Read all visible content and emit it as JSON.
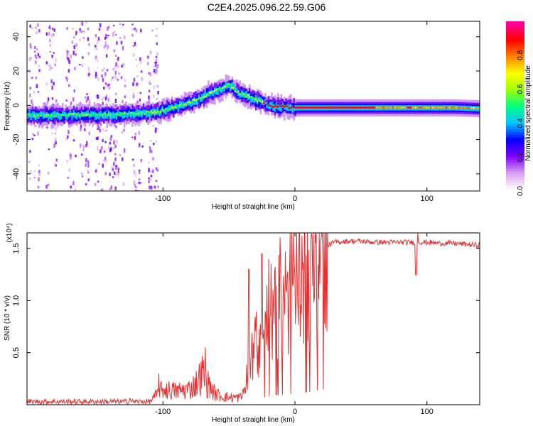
{
  "title": "C2E4.2025.096.22.59.G06",
  "chart_data": [
    {
      "type": "heatmap",
      "xlabel": "Height of straight line (km)",
      "ylabel": "Frequency (Hz)",
      "xlim": [
        -203,
        140
      ],
      "ylim": [
        -50,
        49
      ],
      "xticks": [
        -100,
        0,
        100
      ],
      "yticks": [
        -40,
        -20,
        0,
        20,
        40
      ],
      "xtick_labels": [
        "-100",
        "0",
        "100"
      ],
      "ytick_labels": [
        "-40",
        "-20",
        "0",
        "20",
        "40"
      ],
      "ridge_x": [
        -203,
        -180,
        -160,
        -140,
        -120,
        -105,
        -95,
        -85,
        -75,
        -65,
        -55,
        -50,
        -45,
        -40,
        -35,
        -30,
        -25,
        -20,
        -15,
        -10,
        0,
        20,
        40,
        60,
        80,
        100,
        120,
        140
      ],
      "ridge_y": [
        -6,
        -6,
        -5.5,
        -5.5,
        -5,
        -4,
        -2,
        0,
        3,
        7,
        10,
        12,
        8,
        6,
        5,
        3,
        2,
        0,
        -1,
        -1,
        -1.5,
        -1.5,
        -1.5,
        -1.5,
        -1.5,
        -1.5,
        -1.5,
        -2
      ],
      "colorbar": {
        "label": "Normalized spectral amplitude",
        "range": [
          0,
          1
        ],
        "ticks": [
          "0.0",
          "0.2",
          "0.4",
          "0.6",
          "0.8"
        ],
        "colors": [
          "#ffffff",
          "#d9a0f0",
          "#8000ff",
          "#0000ff",
          "#00c8ff",
          "#00ff80",
          "#a0ff00",
          "#ffff00",
          "#ff8000",
          "#ff0000",
          "#ff00a0"
        ]
      }
    },
    {
      "type": "line",
      "xlabel": "Height of straight line (km)",
      "ylabel": "SNR (10 * v/v)",
      "y_multiplier_label": "(x10⁴)",
      "xlim": [
        -203,
        140
      ],
      "ylim": [
        0,
        16500
      ],
      "xticks": [
        -100,
        0,
        100
      ],
      "yticks": [
        5000,
        10000,
        15000
      ],
      "xtick_labels": [
        "-100",
        "0",
        "100"
      ],
      "ytick_labels": [
        "0.5",
        "1.0",
        "1.5"
      ],
      "color": "#e53030",
      "envelope_x": [
        -203,
        -110,
        -105,
        -100,
        -90,
        -80,
        -75,
        -70,
        -65,
        -60,
        -55,
        -50,
        -45,
        -40,
        -38,
        -35,
        -30,
        -25,
        -20,
        -15,
        -10,
        -5,
        0,
        5,
        10,
        15,
        20,
        25,
        30,
        40,
        50,
        60,
        70,
        80,
        90,
        100,
        110,
        120,
        130,
        140
      ],
      "envelope_y": [
        300,
        300,
        900,
        1500,
        1300,
        1500,
        2000,
        3000,
        1800,
        1000,
        800,
        700,
        700,
        700,
        1500,
        3000,
        5000,
        6500,
        8000,
        9000,
        9500,
        10000,
        11000,
        11500,
        12000,
        13000,
        14500,
        15300,
        15600,
        15700,
        15700,
        15600,
        15600,
        15600,
        15600,
        15600,
        15500,
        15500,
        15400,
        15300
      ],
      "spike_x": [
        -125,
        -103,
        -68,
        -35,
        -25,
        -20,
        -18,
        92,
        93
      ],
      "spike_y": [
        600,
        3000,
        5500,
        13000,
        14500,
        14000,
        13500,
        12500,
        16500
      ]
    }
  ]
}
